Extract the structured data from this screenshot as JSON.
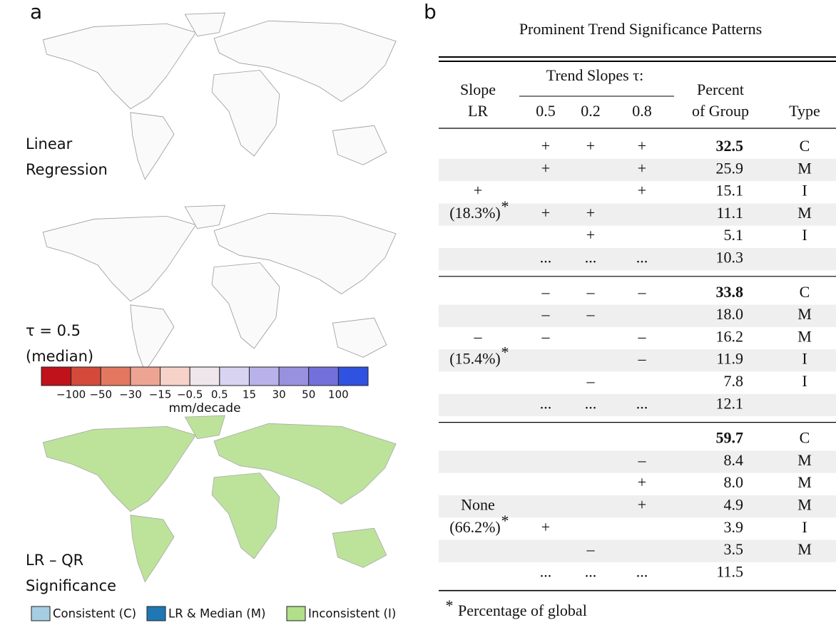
{
  "panel_a": {
    "label": "a",
    "maps": [
      {
        "label_lines": [
          "Linear",
          "Regression"
        ]
      },
      {
        "label_lines": [
          "τ = 0.5",
          "(median)"
        ]
      },
      {
        "label_lines": [
          "LR – QR",
          "Significance"
        ]
      }
    ],
    "colorbar": {
      "colors": [
        "#c0121a",
        "#d44a3a",
        "#e2785f",
        "#eea493",
        "#f6d2c8",
        "#efe6ec",
        "#d8d3f1",
        "#b9b2ea",
        "#9891e0",
        "#7370dc",
        "#2f52e0"
      ],
      "ticks": [
        "−100",
        "−50",
        "−30",
        "−15",
        "−0.5",
        "0.5",
        "15",
        "30",
        "50",
        "100"
      ],
      "unit": "mm/decade"
    },
    "legend": [
      {
        "label": "Consistent (C)",
        "color": "#a6cee3"
      },
      {
        "label": "LR & Median (M)",
        "color": "#1f78b4"
      },
      {
        "label": "Inconsistent (I)",
        "color": "#b2df8a"
      }
    ]
  },
  "panel_b": {
    "label": "b",
    "title": "Prominent Trend Significance Patterns",
    "header": {
      "slope_lr": [
        "Slope",
        "LR"
      ],
      "trend_slopes": "Trend Slopes τ:",
      "taus": [
        "0.5",
        "0.2",
        "0.8"
      ],
      "percent": [
        "Percent",
        "of Group"
      ],
      "type": "Type"
    },
    "groups": [
      {
        "label": "+",
        "share": "(18.3%)",
        "rows": [
          [
            "+",
            "+",
            "+",
            "32.5",
            "C"
          ],
          [
            "+",
            null,
            "+",
            "25.9",
            "M"
          ],
          [
            null,
            null,
            "+",
            "15.1",
            "I"
          ],
          [
            "+",
            "+",
            null,
            "11.1",
            "M"
          ],
          [
            null,
            "+",
            null,
            "5.1",
            "I"
          ],
          [
            "...",
            "...",
            "...",
            "10.3",
            null
          ]
        ]
      },
      {
        "label": "–",
        "share": "(15.4%)",
        "rows": [
          [
            "–",
            "–",
            "–",
            "33.8",
            "C"
          ],
          [
            "–",
            "–",
            null,
            "18.0",
            "M"
          ],
          [
            "–",
            null,
            "–",
            "16.2",
            "M"
          ],
          [
            null,
            null,
            "–",
            "11.9",
            "I"
          ],
          [
            null,
            "–",
            null,
            "7.8",
            "I"
          ],
          [
            "...",
            "...",
            "...",
            "12.1",
            null
          ]
        ]
      },
      {
        "label": "None",
        "share": "(66.2%)",
        "rows": [
          [
            null,
            null,
            null,
            "59.7",
            "C"
          ],
          [
            null,
            null,
            "–",
            "8.4",
            "M"
          ],
          [
            null,
            null,
            "+",
            "8.0",
            "M"
          ],
          [
            null,
            null,
            "+",
            "4.9",
            "M"
          ],
          [
            "+",
            null,
            null,
            "3.9",
            "I"
          ],
          [
            null,
            "–",
            null,
            "3.5",
            "M"
          ],
          [
            "...",
            "...",
            "...",
            "11.5",
            null
          ]
        ]
      }
    ],
    "footnote": {
      "mark": "*",
      "text": "Percentage of global"
    }
  }
}
